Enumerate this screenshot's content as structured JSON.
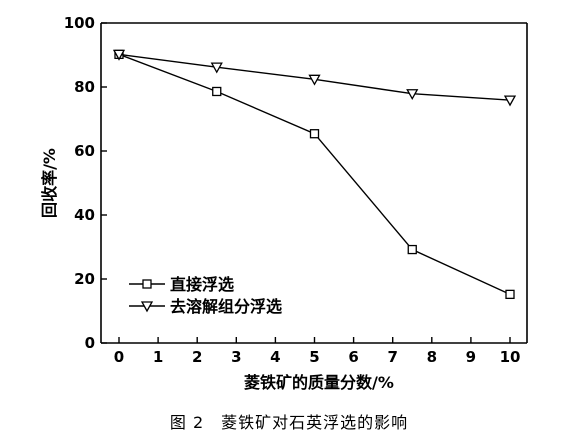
{
  "chart_data": {
    "type": "line",
    "xlabel": "菱铁矿的质量分数/%",
    "ylabel": "回收率/%",
    "xlim": [
      0,
      10
    ],
    "ylim": [
      0,
      100
    ],
    "x_ticks": [
      0,
      1,
      2,
      3,
      4,
      5,
      6,
      7,
      8,
      9,
      10
    ],
    "y_ticks": [
      0,
      20,
      40,
      60,
      80,
      100
    ],
    "grid": false,
    "legend_position": "bottom-left",
    "series": [
      {
        "name": "直接浮选",
        "marker": "square",
        "x": [
          0,
          2.5,
          5,
          7.5,
          10
        ],
        "y": [
          90.2,
          78.6,
          65.4,
          29.2,
          15.2
        ]
      },
      {
        "name": "去溶解组分浮选",
        "marker": "triangle-down",
        "x": [
          0,
          2.5,
          5,
          7.5,
          10
        ],
        "y": [
          90.2,
          86.2,
          82.4,
          77.9,
          75.9
        ]
      }
    ]
  },
  "caption": "图 2　菱铁矿对石英浮选的影响"
}
